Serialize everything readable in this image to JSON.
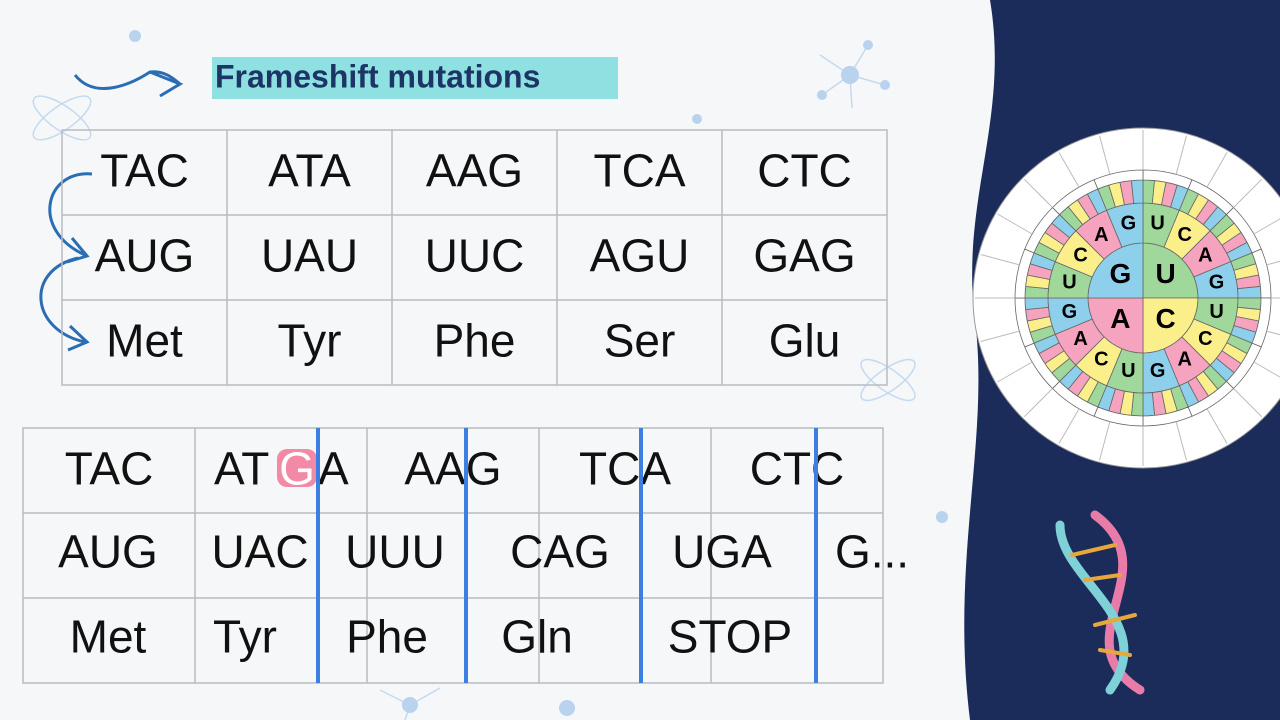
{
  "title": "Frameshift mutations",
  "original_table": {
    "rows": [
      [
        "TAC",
        "ATA",
        "AAG",
        "TCA",
        "CTC"
      ],
      [
        "AUG",
        "UAU",
        "UUC",
        "AGU",
        "GAG"
      ],
      [
        "Met",
        "Tyr",
        "Phe",
        "Ser",
        "Glu"
      ]
    ]
  },
  "mutated_table": {
    "dna": [
      "TAC",
      [
        "AT",
        "G",
        "A"
      ],
      "AAG",
      "TCA",
      "CTC"
    ],
    "mrna": [
      "AUG",
      "UAC",
      "UUU",
      "CAG",
      "UGA",
      "G..."
    ],
    "amino_acids": [
      "Met",
      "Tyr",
      "Phe",
      "Gln",
      "STOP"
    ]
  },
  "codon_wheel": {
    "inner": [
      "U",
      "C",
      "A",
      "G"
    ],
    "second": [
      "U",
      "C",
      "A",
      "G"
    ]
  }
}
